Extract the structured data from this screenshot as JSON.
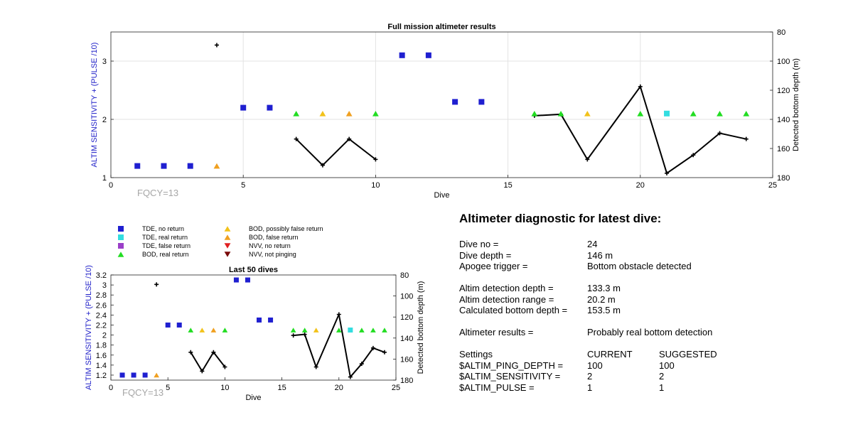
{
  "chart_data": [
    {
      "type": "scatter",
      "title": "Full mission altimeter results",
      "xlabel": "Dive",
      "ylabel": "ALTIM SENSITIVITY + (PULSE /10)",
      "y2label": "Detected bottom depth (m)",
      "xlim": [
        0,
        25
      ],
      "ylim": [
        1,
        3.5
      ],
      "y2lim": [
        80,
        180
      ],
      "y2_reversed": true,
      "x_ticks": [
        "0",
        "5",
        "10",
        "15",
        "20",
        "25"
      ],
      "y_ticks": [
        "1",
        "2",
        "3"
      ],
      "y2_ticks": [
        "80",
        "100",
        "120",
        "140",
        "160",
        "180"
      ],
      "grid": true,
      "annotation": "FQCY=13",
      "series": [
        {
          "name": "TDE, no return",
          "x": [
            1,
            2,
            3,
            5,
            6,
            11,
            12,
            13,
            14
          ],
          "y": [
            1.2,
            1.2,
            1.2,
            2.2,
            2.2,
            3.1,
            3.1,
            2.3,
            2.3
          ]
        },
        {
          "name": "TDE, real return",
          "x": [
            21
          ],
          "y": [
            2.1
          ]
        },
        {
          "name": "BOD, real return",
          "x": [
            7,
            10,
            16,
            17,
            20,
            22,
            23,
            24
          ],
          "y": [
            2.1,
            2.1,
            2.1,
            2.1,
            2.1,
            2.1,
            2.1,
            2.1
          ]
        },
        {
          "name": "BOD, possibly false return",
          "x": [
            8,
            18
          ],
          "y": [
            2.1,
            2.1
          ]
        },
        {
          "name": "BOD, false return",
          "x": [
            4,
            9
          ],
          "y": [
            1.2,
            2.1
          ]
        },
        {
          "name": "Detected bottom depth",
          "axis": "right",
          "x": [
            4,
            7,
            8,
            9,
            10,
            16,
            17,
            18,
            20,
            21,
            22,
            23,
            24
          ],
          "y": [
            89,
            153.5,
            171.5,
            153.5,
            167.5,
            137.5,
            136.5,
            167.5,
            117.5,
            177,
            164.5,
            149.5,
            153.5
          ]
        }
      ]
    },
    {
      "type": "scatter",
      "title": "Last 50 dives",
      "xlabel": "Dive",
      "ylabel": "ALTIM SENSITIVITY + (PULSE /10)",
      "y2label": "Detected bottom depth (m)",
      "xlim": [
        0,
        25
      ],
      "ylim": [
        1.1,
        3.2
      ],
      "y2lim": [
        80,
        180
      ],
      "y2_reversed": true,
      "x_ticks": [
        "0",
        "5",
        "10",
        "15",
        "20",
        "25"
      ],
      "y_ticks": [
        "1.2",
        "1.4",
        "1.6",
        "1.8",
        "2",
        "2.2",
        "2.4",
        "2.6",
        "2.8",
        "3",
        "3.2"
      ],
      "y2_ticks": [
        "80",
        "100",
        "120",
        "140",
        "160",
        "180"
      ],
      "grid": false,
      "annotation": "FQCY=13",
      "series": [
        {
          "name": "TDE, no return",
          "x": [
            1,
            2,
            3,
            5,
            6,
            11,
            12,
            13,
            14
          ],
          "y": [
            1.2,
            1.2,
            1.2,
            2.2,
            2.2,
            3.1,
            3.1,
            2.3,
            2.3
          ]
        },
        {
          "name": "TDE, real return",
          "x": [
            21
          ],
          "y": [
            2.1
          ]
        },
        {
          "name": "BOD, real return",
          "x": [
            7,
            10,
            16,
            17,
            20,
            22,
            23,
            24
          ],
          "y": [
            2.1,
            2.1,
            2.1,
            2.1,
            2.1,
            2.1,
            2.1,
            2.1
          ]
        },
        {
          "name": "BOD, possibly false return",
          "x": [
            8,
            18
          ],
          "y": [
            2.1,
            2.1
          ]
        },
        {
          "name": "BOD, false return",
          "x": [
            4,
            9
          ],
          "y": [
            1.2,
            2.1
          ]
        },
        {
          "name": "Detected bottom depth",
          "axis": "right",
          "x": [
            4,
            7,
            8,
            9,
            10,
            16,
            17,
            18,
            20,
            21,
            22,
            23,
            24
          ],
          "y": [
            89,
            153.5,
            171.5,
            153.5,
            167.5,
            137.5,
            136.5,
            167.5,
            117.5,
            177,
            164.5,
            149.5,
            153.5
          ]
        }
      ]
    }
  ],
  "legend": [
    {
      "label": "TDE, no return",
      "marker": "square",
      "color": "#1f1fd0"
    },
    {
      "label": "TDE, real return",
      "marker": "square",
      "color": "#33dde0"
    },
    {
      "label": "TDE, false return",
      "marker": "square",
      "color": "#9b3fc8"
    },
    {
      "label": "BOD, real return",
      "marker": "triangle-up",
      "color": "#22dd22"
    },
    {
      "label": "BOD, possibly false return",
      "marker": "triangle-up",
      "color": "#f2c21a"
    },
    {
      "label": "BOD, false return",
      "marker": "triangle-up",
      "color": "#f0a020"
    },
    {
      "label": "NVV, no return",
      "marker": "triangle-down",
      "color": "#e02020"
    },
    {
      "label": "NVV, not pinging",
      "marker": "triangle-down",
      "color": "#7a0a0a"
    }
  ],
  "colors": {
    "tde_no_return": "#1f1fd0",
    "tde_real_return": "#33dde0",
    "bod_real_return": "#22dd22",
    "bod_possibly_false": "#f2c21a",
    "bod_false": "#f0a020",
    "depth_line": "#000000",
    "ylabel_blue": "#1f1fc8"
  },
  "diagnostic": {
    "title": "Altimeter diagnostic for latest dive:",
    "dive_no_label": "Dive no =",
    "dive_no": "24",
    "dive_depth_label": "Dive depth =",
    "dive_depth": "146 m",
    "apogee_label": "Apogee trigger =",
    "apogee": "Bottom obstacle detected",
    "altim_depth_label": "Altim detection depth =",
    "altim_depth": "133.3 m",
    "altim_range_label": "Altim detection range =",
    "altim_range": "20.2 m",
    "calc_depth_label": "Calculated bottom depth =",
    "calc_depth": "153.5 m",
    "results_label": "Altimeter results =",
    "results": "Probably real bottom detection",
    "settings_label": "Settings",
    "current_label": "CURRENT",
    "suggested_label": "SUGGESTED",
    "ping_depth_label": "$ALTIM_PING_DEPTH =",
    "ping_depth_current": "100",
    "ping_depth_suggested": "100",
    "sensitivity_label": "$ALTIM_SENSITIVITY =",
    "sensitivity_current": "2",
    "sensitivity_suggested": "2",
    "pulse_label": "$ALTIM_PULSE =",
    "pulse_current": "1",
    "pulse_suggested": "1"
  }
}
